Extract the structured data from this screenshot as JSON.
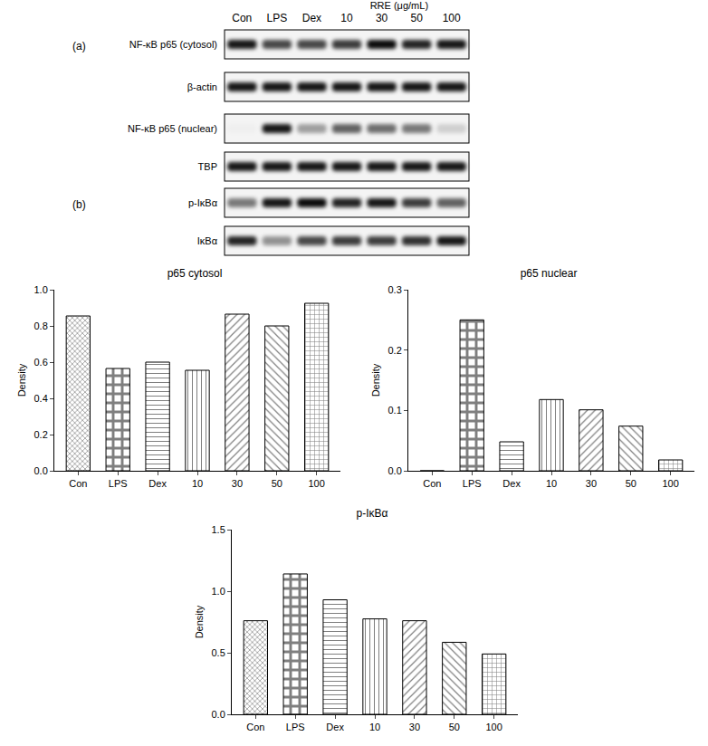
{
  "blot": {
    "lanes": [
      "Con",
      "LPS",
      "Dex",
      "10",
      "30",
      "50",
      "100"
    ],
    "group": {
      "label": "RRE (μg/mL)",
      "lanes": [
        "10",
        "30",
        "50",
        "100"
      ]
    },
    "panels": [
      {
        "label": "(a)",
        "rows": [
          {
            "name": "NF-κB p65 (cytosol)",
            "bands": [
              0.9,
              0.7,
              0.7,
              0.75,
              0.95,
              0.85,
              0.9
            ]
          },
          {
            "name": "β-actin",
            "bands": [
              0.9,
              0.9,
              0.9,
              0.9,
              0.9,
              0.9,
              0.9
            ]
          },
          {
            "name": "NF-κB p65 (nuclear)",
            "bands": [
              0.02,
              0.9,
              0.35,
              0.6,
              0.55,
              0.5,
              0.15
            ]
          },
          {
            "name": "TBP",
            "bands": [
              0.9,
              0.9,
              0.9,
              0.9,
              0.9,
              0.9,
              0.9
            ]
          }
        ]
      },
      {
        "label": "(b)",
        "rows": [
          {
            "name": "p-IκBα",
            "bands": [
              0.5,
              0.9,
              0.95,
              0.85,
              0.9,
              0.75,
              0.6
            ]
          },
          {
            "name": "IκBα",
            "bands": [
              0.85,
              0.4,
              0.7,
              0.75,
              0.75,
              0.8,
              0.9
            ]
          }
        ]
      }
    ]
  },
  "chart_data": [
    {
      "type": "bar",
      "title": "p65 cytosol",
      "y_label": "Density",
      "categories": [
        "Con",
        "LPS",
        "Dex",
        "10",
        "30",
        "50",
        "100"
      ],
      "values": [
        0.855,
        0.565,
        0.6,
        0.555,
        0.865,
        0.8,
        0.925
      ],
      "color": "#000000",
      "grid": false,
      "ylim": [
        0,
        1.0
      ],
      "yticks": [
        {
          "value": 0,
          "label": "0.0"
        },
        0.2,
        0.4,
        0.6,
        0.8,
        {
          "value": 1,
          "label": "1.0"
        }
      ]
    },
    {
      "type": "bar",
      "title": "p65 nuclear",
      "y_label": "Density",
      "categories": [
        "Con",
        "LPS",
        "Dex",
        "10",
        "30",
        "50",
        "100"
      ],
      "values": [
        0,
        0.25,
        0.048,
        0.118,
        0.101,
        0.074,
        0.018
      ],
      "color": "#000000",
      "grid": false,
      "ylim": [
        0,
        0.3
      ],
      "yticks": [
        {
          "value": 0,
          "label": "0.0"
        },
        0.1,
        0.2,
        0.3
      ]
    },
    {
      "type": "bar",
      "title": "p-IκBα",
      "y_label": "Density",
      "categories": [
        "Con",
        "LPS",
        "Dex",
        "10",
        "30",
        "50",
        "100"
      ],
      "values": [
        0.76,
        1.14,
        0.93,
        0.775,
        0.76,
        0.585,
        0.49
      ],
      "color": "#000000",
      "grid": false,
      "ylim": [
        0,
        1.5
      ],
      "yticks": [
        {
          "value": 0,
          "label": "0.0"
        },
        0.5,
        {
          "value": 1,
          "label": "1.0"
        },
        1.5
      ]
    }
  ]
}
